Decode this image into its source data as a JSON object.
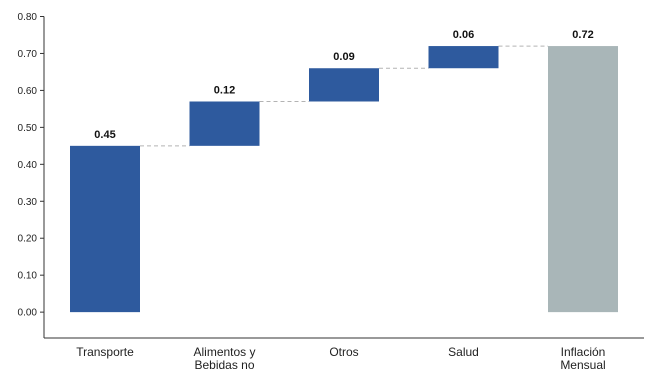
{
  "chart_data": {
    "type": "bar",
    "subtype": "waterfall",
    "categories": [
      [
        "Transporte"
      ],
      [
        "Alimentos y",
        "Bebidas no"
      ],
      [
        "Otros"
      ],
      [
        "Salud"
      ],
      [
        "Inflación",
        "Mensual"
      ]
    ],
    "values": [
      0.45,
      0.12,
      0.09,
      0.06,
      0.72
    ],
    "bases": [
      0,
      0.45,
      0.57,
      0.66,
      0
    ],
    "value_labels": [
      "0.45",
      "0.12",
      "0.09",
      "0.06",
      "0.72"
    ],
    "is_total": [
      false,
      false,
      false,
      false,
      true
    ],
    "ylim": [
      -0.07,
      0.8
    ],
    "yticks": [
      0.0,
      0.1,
      0.2,
      0.3,
      0.4,
      0.5,
      0.6,
      0.7,
      0.8
    ],
    "ytick_labels": [
      "0.00",
      "0.10",
      "0.20",
      "0.30",
      "0.40",
      "0.50",
      "0.60",
      "0.70",
      "0.80"
    ],
    "title": "",
    "xlabel": "",
    "ylabel": "",
    "grid": false,
    "connectors": true,
    "colors": {
      "increase": "#2e5a9e",
      "total": "#a9b6b8",
      "connector": "#b3b3b3",
      "axis": "#333333"
    }
  }
}
